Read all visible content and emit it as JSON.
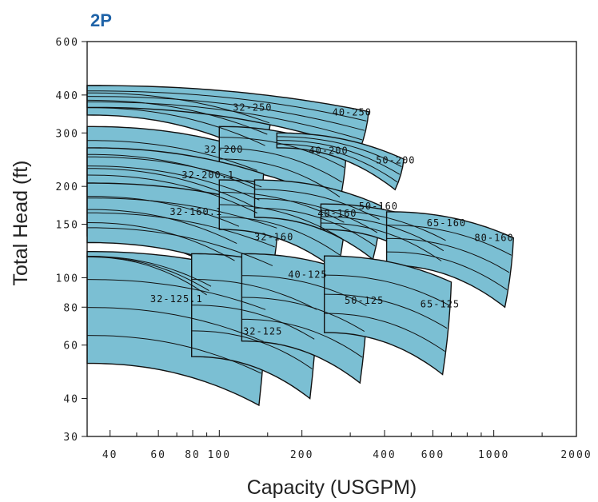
{
  "chart_data": {
    "type": "area",
    "title": "2P",
    "xlabel": "Capacity (USGPM)",
    "ylabel": "Total Head (ft)",
    "x_scale": "log",
    "y_scale": "log",
    "xlim": [
      33,
      2000
    ],
    "ylim": [
      30,
      600
    ],
    "x_ticks": [
      40,
      60,
      80,
      100,
      200,
      400,
      600,
      1000,
      2000
    ],
    "x_tick_labels": [
      "40",
      "60",
      "80",
      "100",
      "200",
      "400",
      "600",
      "1000",
      "2000"
    ],
    "y_ticks": [
      30,
      40,
      60,
      80,
      100,
      150,
      200,
      300,
      400,
      600
    ],
    "y_tick_labels": [
      "30",
      "40",
      "60",
      "80",
      "100",
      "150",
      "200",
      "300",
      "400",
      "600"
    ],
    "grid": false,
    "legend": "none",
    "fill_color": "#7bbfd3",
    "series": [
      {
        "name": "32-250",
        "q_max": 155,
        "h_top": 430,
        "h_low": 250,
        "label_at": [
          112,
          355
        ]
      },
      {
        "name": "40-250",
        "q_max": 350,
        "h_top": 430,
        "h_low": 265,
        "label_at": [
          258,
          342
        ]
      },
      {
        "name": "32-200",
        "q_max": 140,
        "h_top": 315,
        "h_low": 150,
        "label_at": [
          88,
          258
        ]
      },
      {
        "name": "40-200",
        "q_max": 290,
        "h_top": 315,
        "h_low": 165,
        "label_at": [
          212,
          256
        ]
      },
      {
        "name": "50-200",
        "q_max": 470,
        "h_top": 300,
        "h_low": 195,
        "label_at": [
          372,
          238
        ]
      },
      {
        "name": "32-200.1",
        "q_max": 145,
        "h_top": 268,
        "h_low": 148,
        "label_at": [
          73,
          213
        ]
      },
      {
        "name": "32-160.1",
        "q_max": 120,
        "h_top": 205,
        "h_low": 100,
        "label_at": [
          66,
          161
        ]
      },
      {
        "name": "32-160",
        "q_max": 165,
        "h_top": 205,
        "h_low": 95,
        "label_at": [
          134,
          133
        ]
      },
      {
        "name": "40-160",
        "q_max": 290,
        "h_top": 210,
        "h_low": 105,
        "label_at": [
          228,
          159
        ]
      },
      {
        "name": "50-160",
        "q_max": 390,
        "h_top": 210,
        "h_low": 115,
        "label_at": [
          322,
          168
        ]
      },
      {
        "name": "65-160",
        "q_max": 680,
        "h_top": 175,
        "h_low": 105,
        "label_at": [
          570,
          148
        ]
      },
      {
        "name": "80-160",
        "q_max": 1180,
        "h_top": 165,
        "h_low": 80,
        "label_at": [
          850,
          132
        ]
      },
      {
        "name": "32-125.1",
        "q_max": 95,
        "h_top": 118,
        "h_low": 85,
        "label_at": [
          56,
          83
        ]
      },
      {
        "name": "32-125",
        "q_max": 150,
        "h_top": 122,
        "h_low": 38,
        "label_at": [
          122,
          65
        ]
      },
      {
        "name": "40-125",
        "q_max": 230,
        "h_top": 120,
        "h_low": 40,
        "label_at": [
          178,
          100
        ]
      },
      {
        "name": "50-125",
        "q_max": 350,
        "h_top": 120,
        "h_low": 45,
        "label_at": [
          286,
          82
        ]
      },
      {
        "name": "65-125",
        "q_max": 700,
        "h_top": 118,
        "h_low": 48,
        "label_at": [
          540,
          80
        ]
      }
    ]
  }
}
